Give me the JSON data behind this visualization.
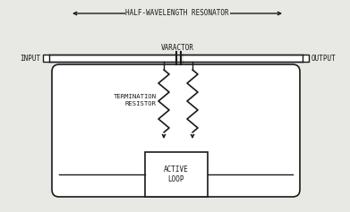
{
  "bg_color": "#e8e8e4",
  "line_color": "#1a1a1a",
  "white": "#ffffff",
  "title": "HALF-WAVELENGTH RESONATOR",
  "varactor_label": "VARACTOR",
  "termination_label": "TERMINATION\nRESISTOR",
  "active_loop_label": "ACTIVE\nLOOP",
  "input_label": "INPUT",
  "output_label": "OUTPUT",
  "fig_width": 3.91,
  "fig_height": 2.37,
  "dpi": 100
}
